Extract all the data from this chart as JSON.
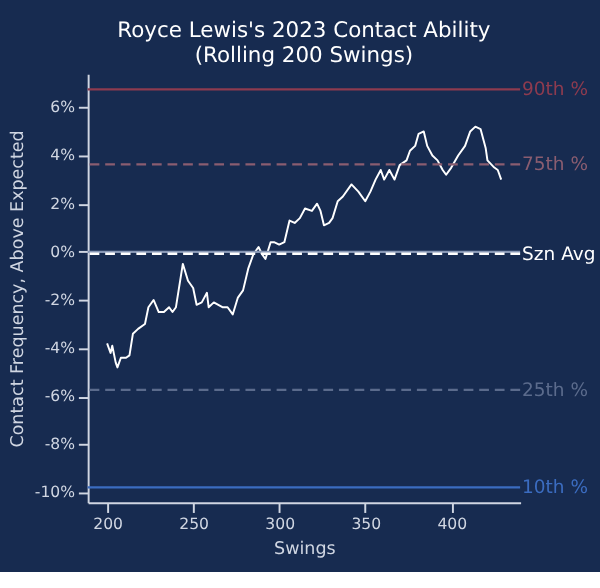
{
  "chart_data": {
    "type": "line",
    "title": "Royce Lewis's 2023 Contact Ability\n(Rolling 200 Swings)",
    "xlabel": "Swings",
    "ylabel": "Contact Frequency, Above Expected",
    "xlim": [
      188.7,
      440
    ],
    "xticks": [
      200,
      250,
      300,
      350,
      400
    ],
    "ylim": [
      -10.4,
      7.4
    ],
    "yticks": [
      {
        "value": -10,
        "label": "-10%"
      },
      {
        "value": -8,
        "label": "-8%"
      },
      {
        "value": -6,
        "label": "-6%"
      },
      {
        "value": -4,
        "label": "-4%"
      },
      {
        "value": -2,
        "label": "-2%"
      },
      {
        "value": 0,
        "label": "0%"
      },
      {
        "value": 2,
        "label": "2%"
      },
      {
        "value": 4,
        "label": "4%"
      },
      {
        "value": 6,
        "label": "6%"
      }
    ],
    "grid": false,
    "marker": "none",
    "line_style": "solid",
    "series": [
      {
        "color": "#ffffff",
        "x": [
          200,
          202,
          203,
          205,
          206,
          208,
          211,
          213,
          215,
          218,
          222,
          224,
          227,
          230,
          233,
          236,
          238,
          240,
          244,
          247,
          250,
          252,
          255,
          258,
          259,
          262,
          267,
          270,
          273,
          276,
          279,
          282,
          285,
          288,
          290,
          292,
          295,
          297,
          300,
          303,
          306,
          309,
          312,
          315,
          319,
          322,
          324,
          326,
          329,
          331,
          334,
          337,
          342,
          346,
          350,
          353,
          356,
          359,
          361,
          364,
          367,
          370,
          374,
          376,
          379,
          381,
          384,
          386,
          389,
          392,
          395,
          397,
          400,
          404,
          408,
          411,
          414,
          417,
          420,
          421,
          425,
          427,
          429
        ],
        "values": [
          -3.8,
          -4.2,
          -3.9,
          -4.6,
          -4.8,
          -4.4,
          -4.4,
          -4.3,
          -3.4,
          -3.2,
          -3.0,
          -2.3,
          -2.0,
          -2.5,
          -2.5,
          -2.3,
          -2.5,
          -2.3,
          -0.5,
          -1.2,
          -1.5,
          -2.2,
          -2.1,
          -1.7,
          -2.3,
          -2.1,
          -2.3,
          -2.3,
          -2.6,
          -1.9,
          -1.6,
          -0.7,
          -0.1,
          0.2,
          -0.1,
          -0.3,
          0.4,
          0.4,
          0.3,
          0.4,
          1.3,
          1.2,
          1.4,
          1.8,
          1.7,
          2.0,
          1.7,
          1.1,
          1.2,
          1.4,
          2.1,
          2.3,
          2.8,
          2.5,
          2.1,
          2.5,
          3.0,
          3.4,
          3.0,
          3.4,
          3.0,
          3.6,
          3.8,
          4.2,
          4.4,
          4.9,
          5.0,
          4.4,
          4.0,
          3.8,
          3.4,
          3.2,
          3.5,
          4.0,
          4.4,
          5.0,
          5.2,
          5.1,
          4.3,
          3.8,
          3.5,
          3.4,
          3.0
        ]
      }
    ],
    "ref_lines": [
      {
        "axis": "y",
        "value": 6.75,
        "label": "90th %",
        "color": "#8e3b4f",
        "line_style": "solid"
      },
      {
        "axis": "y",
        "value": 3.63,
        "label": "75th %",
        "color": "#8a5d70",
        "line_style": "dashed"
      },
      {
        "axis": "y",
        "value": 0,
        "color": "#8797b5",
        "line_style": "solid"
      },
      {
        "axis": "y",
        "value": -0.08,
        "label": "Szn Avg",
        "color": "#ffffff",
        "line_style": "dashed"
      },
      {
        "axis": "y",
        "value": -5.73,
        "label": "25th %",
        "color": "#5b6b8c",
        "line_style": "dashed"
      },
      {
        "axis": "y",
        "value": -9.78,
        "label": "10th %",
        "color": "#3b6cc0",
        "line_style": "solid"
      }
    ]
  }
}
